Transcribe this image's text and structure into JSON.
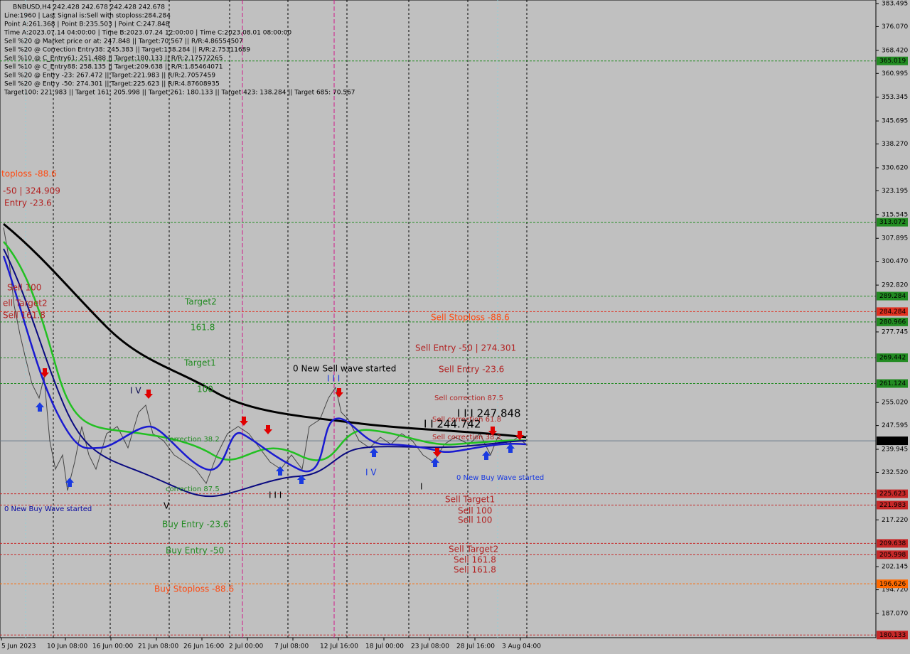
{
  "header": {
    "lines": [
      "BNBUSD,H4  242.428 242.678 242.428 242.678",
      "Line:1960 | Last Signal is:Sell with stoploss:284.284",
      "Point A:261.368 | Point B:235.503 | Point C:247.848",
      "Time A:2023.07.14 04:00:00 | Time B:2023.07.24 12:00:00 | Time C:2023.08.01 08:00:00",
      "Sell %20 @ Market price or at: 247.848 || Target:70.567 || R/R:4.86554507",
      "Sell %20 @ Correction Entry38: 245.383 || Target:138.284 || R/R:2.75311689",
      "Sell %10 @ C_Entry61: 251.488 || Target:180.133 || R/R:2.17572265",
      "Sell %10 @ C_Entry88: 258.135 || Target:209.638 || R/R:1.85464071",
      "Sell %20 @ Entry -23: 267.472 || Target:221.983 || R/R:2.7057459",
      "Sell %20 @ Entry -50: 274.301 || Target:225.623 || R/R:4.87608935",
      "Target100: 221.983 || Target 161: 205.998 || Target 261: 180.133 || Target 423: 138.284 || Target 685: 70.567"
    ]
  },
  "price_axis": {
    "ticks": [
      383.495,
      {
        "value": 376.07,
        "label": "376.070"
      },
      {
        "value": 368.42,
        "label": "368.420"
      },
      360.995,
      353.345,
      345.695,
      {
        "value": 338.27,
        "label": "338.270"
      },
      {
        "value": 330.62,
        "label": "330.620"
      },
      323.195,
      315.545,
      307.895,
      {
        "value": 300.47,
        "label": "300.470"
      },
      {
        "value": 292.82,
        "label": "292.820"
      },
      277.745,
      {
        "value": 255.02,
        "label": "255.020"
      },
      247.595,
      239.945,
      {
        "value": 232.52,
        "label": "232.520"
      },
      {
        "value": 217.22,
        "label": "217.220"
      },
      202.145,
      {
        "value": 194.72,
        "label": "194.720"
      },
      {
        "value": 187.07,
        "label": "187.070"
      }
    ],
    "levels": [
      {
        "value": 365.019,
        "color": "#228b22"
      },
      {
        "value": 313.072,
        "color": "#228b22"
      },
      {
        "value": 289.284,
        "color": "#228b22"
      },
      {
        "value": 284.284,
        "color": "#e03020"
      },
      {
        "value": 280.966,
        "color": "#228b22"
      },
      {
        "value": 269.442,
        "color": "#228b22"
      },
      {
        "value": 261.124,
        "color": "#228b22"
      },
      {
        "value": 242.678,
        "color": "#000000"
      },
      {
        "value": 225.623,
        "color": "#c62828"
      },
      {
        "value": 221.983,
        "color": "#c62828"
      },
      {
        "value": 209.638,
        "color": "#c62828"
      },
      {
        "value": 205.998,
        "color": "#c62828"
      },
      {
        "value": 196.626,
        "color": "#ff6a00"
      },
      {
        "value": 180.133,
        "color": "#c62828"
      }
    ]
  },
  "time_axis": {
    "labels": [
      "5 Jun 2023",
      "10 Jun 08:00",
      "16 Jun 00:00",
      "21 Jun 08:00",
      "26 Jun 16:00",
      "2 Jul 00:00",
      "7 Jul 08:00",
      "12 Jul 16:00",
      "18 Jul 00:00",
      "23 Jul 08:00",
      "28 Jul 16:00",
      "3 Aug 04:00"
    ]
  },
  "annotations": [
    "toploss -88.6",
    "-50 | 324.909",
    "Entry -23.6",
    "Sell 100",
    "ell Target2",
    "Sell 161.8",
    "Target2",
    "161.8",
    "Target1",
    "100",
    "I V",
    "0 New Sell wave started",
    "I I I",
    "correction 38.2",
    "correction 87.5",
    "V",
    "0 New Buy Wave started",
    "Buy Entry -23.6",
    "Buy Entry -50",
    "Buy Stoploss -88.6",
    "Sell Stoploss -88.6",
    "Sell Entry -50 | 274.301",
    "Sell Entry -23.6",
    "Sell correction 87.5",
    "Sell correction 61.8",
    "Sell correction 38.2",
    "I I I 247.848",
    "I I 244.742",
    "I V",
    "0 New Buy Wave started",
    "Sell Target1",
    "Sell 100",
    "Sell 100",
    "Sell Target2",
    "Sell 161.8",
    "Sell 161.8",
    "I",
    "I I I"
  ]
}
